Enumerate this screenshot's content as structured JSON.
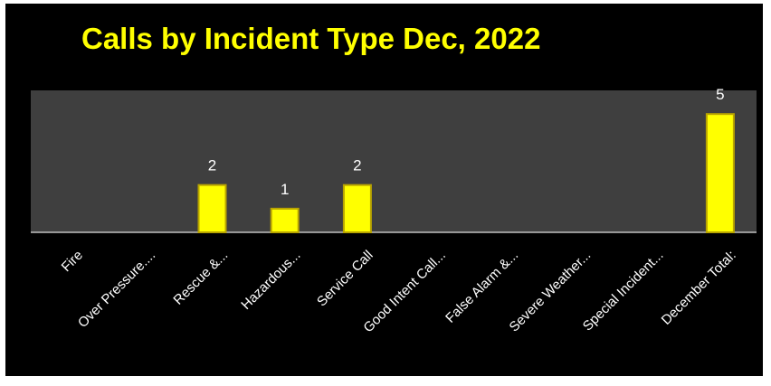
{
  "chart_data": {
    "type": "bar",
    "title": "Calls by Incident Type Dec, 2022",
    "categories": [
      "Fire",
      "Over Pressure....",
      "Rescue &...",
      "Hazardous...",
      "Service Call",
      "Good Intent Call...",
      "False Alarm &...",
      "Severe Weather...",
      "Special Incident...",
      "December Total:"
    ],
    "values": [
      0,
      0,
      2,
      1,
      2,
      0,
      0,
      0,
      0,
      5
    ],
    "data_labels": [
      "",
      "",
      "2",
      "1",
      "2",
      "",
      "",
      "",
      "",
      "5"
    ],
    "ylim": [
      0,
      6
    ],
    "xlabel": "",
    "ylabel": "",
    "grid": false,
    "legend": "none"
  },
  "colors": {
    "background": "#000000",
    "plot_area": "#3f3f3f",
    "bar_fill": "#ffff00",
    "bar_edge": "#b8a400",
    "title": "#ffff00",
    "text": "#ffffff",
    "axis": "#bfbfbf"
  }
}
